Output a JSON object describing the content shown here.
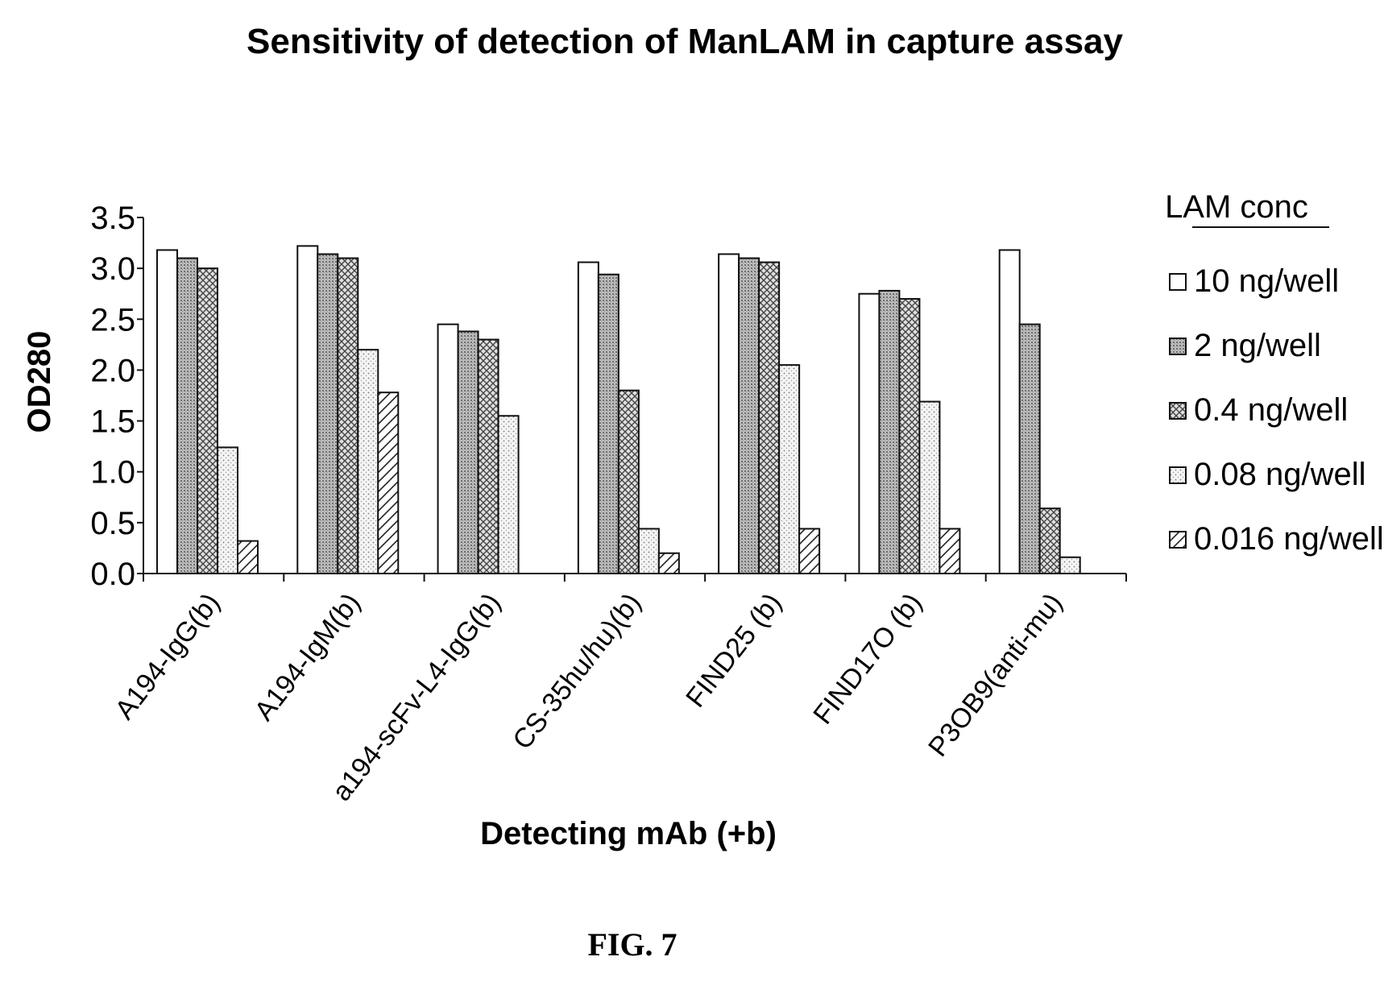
{
  "chart_data": {
    "type": "bar",
    "title": "Sensitivity of detection of ManLAM in capture assay",
    "xlabel": "Detecting mAb (+b)",
    "ylabel": "OD280",
    "ylim": [
      0,
      3.5
    ],
    "yticks": [
      "0.0",
      "0.5",
      "1.0",
      "1.5",
      "2.0",
      "2.5",
      "3.0",
      "3.5"
    ],
    "categories": [
      "A194-IgG(b)",
      "A194-IgM(b)",
      "a194-scFv-L4-IgG(b)",
      "CS-35hu/hu)(b)",
      "FIND25 (b)",
      "FIND17O (b)",
      "P3OB9(anti-mu)"
    ],
    "legend_title": "LAM conc",
    "legend_position": "right",
    "series": [
      {
        "name": "10 ng/well",
        "pattern": "white",
        "values": [
          3.18,
          3.22,
          2.45,
          3.06,
          3.14,
          2.75,
          3.18
        ]
      },
      {
        "name": "2 ng/well",
        "pattern": "dense-dots",
        "values": [
          3.1,
          3.14,
          2.38,
          2.94,
          3.1,
          2.78,
          2.45
        ]
      },
      {
        "name": "0.4 ng/well",
        "pattern": "crosshatch",
        "values": [
          3.0,
          3.1,
          2.3,
          1.8,
          3.06,
          2.7,
          0.64
        ]
      },
      {
        "name": "0.08 ng/well",
        "pattern": "sparse-dots",
        "values": [
          1.24,
          2.2,
          1.55,
          0.44,
          2.05,
          1.69,
          0.16
        ]
      },
      {
        "name": "0.016 ng/well",
        "pattern": "diagonal",
        "values": [
          0.32,
          1.78,
          null,
          0.2,
          0.44,
          0.44,
          null
        ]
      }
    ]
  },
  "figure_label": "FIG. 7"
}
